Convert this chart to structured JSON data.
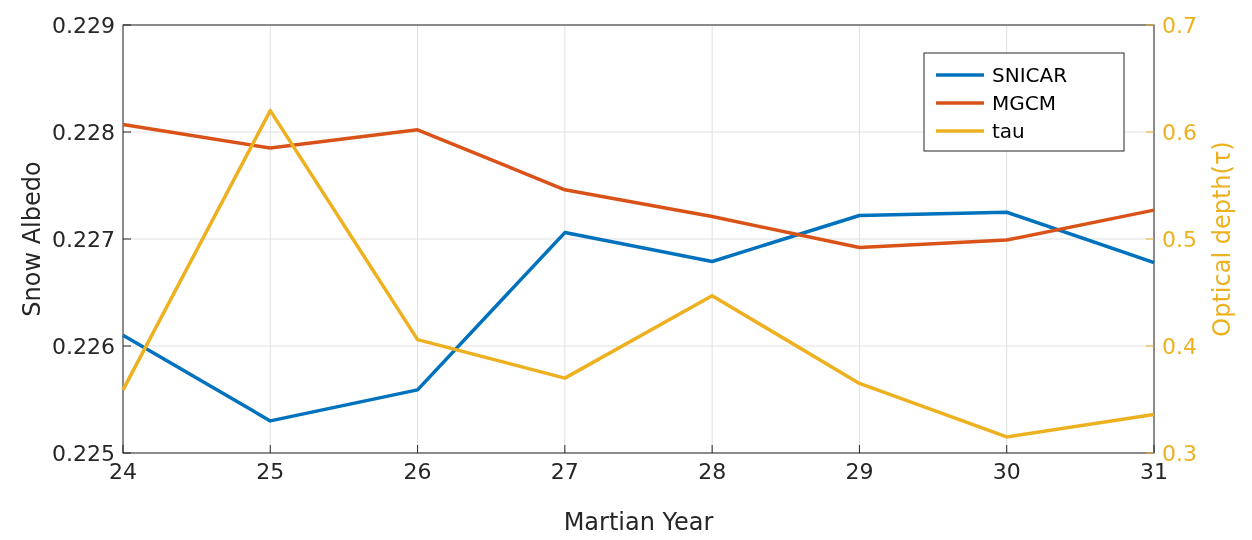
{
  "chart_data": {
    "type": "line",
    "xlabel": "Martian Year",
    "ylabel": "Snow Albedo",
    "y2label": "Optical depth(τ)",
    "x": [
      24,
      25,
      26,
      27,
      28,
      29,
      30,
      31
    ],
    "xlim": [
      24,
      31
    ],
    "xticks": [
      24,
      25,
      26,
      27,
      28,
      29,
      30,
      31
    ],
    "ylim": [
      0.225,
      0.229
    ],
    "yticks": [
      0.225,
      0.226,
      0.227,
      0.228,
      0.229
    ],
    "y2lim": [
      0.3,
      0.7
    ],
    "y2ticks": [
      0.3,
      0.4,
      0.5,
      0.6,
      0.7
    ],
    "grid": true,
    "legend": "top right",
    "line_style": "solid",
    "marker": "none",
    "series": [
      {
        "name": "SNICAR",
        "color": "#0072bd",
        "values": [
          0.2261,
          0.2253,
          0.22559,
          0.22706,
          0.22679,
          0.22722,
          0.22725,
          0.22678
        ]
      },
      {
        "name": "MGCM",
        "color": "#d95319",
        "values": [
          0.22807,
          0.22785,
          0.22802,
          0.22746,
          0.22721,
          0.22692,
          0.22699,
          0.22727
        ]
      },
      {
        "name": "tau",
        "color": "#edb120",
        "axis": "y2",
        "values": [
          0.359,
          0.62,
          0.406,
          0.37,
          0.447,
          0.365,
          0.315,
          0.336
        ]
      }
    ]
  }
}
